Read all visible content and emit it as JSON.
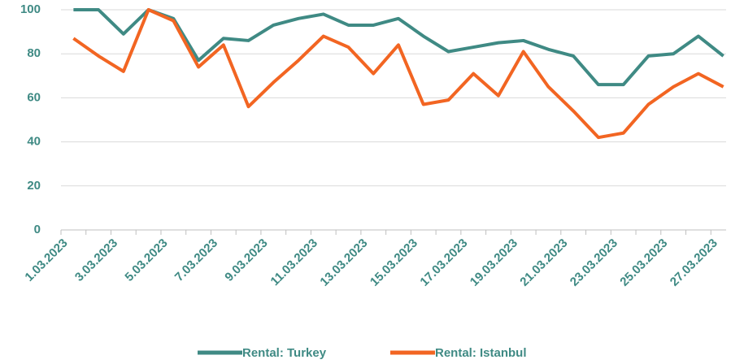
{
  "chart_data": {
    "type": "line",
    "categories": [
      "1.03.2023",
      null,
      "3.03.2023",
      null,
      "5.03.2023",
      null,
      "7.03.2023",
      null,
      "9.03.2023",
      null,
      "11.03.2023",
      null,
      "13.03.2023",
      null,
      "15.03.2023",
      null,
      "17.03.2023",
      null,
      "19.03.2023",
      null,
      "21.03.2023",
      null,
      "23.03.2023",
      null,
      "25.03.2023",
      null,
      "27.03.2023"
    ],
    "series": [
      {
        "name": "Rental: Turkey",
        "color": "#3f8a84",
        "values": [
          100,
          100,
          89,
          100,
          96,
          77,
          87,
          86,
          93,
          96,
          98,
          93,
          93,
          96,
          88,
          81,
          83,
          85,
          86,
          82,
          79,
          66,
          66,
          79,
          80,
          88,
          79
        ]
      },
      {
        "name": "Rental: Istanbul",
        "color": "#f26522",
        "values": [
          87,
          79,
          72,
          100,
          95,
          74,
          84,
          56,
          67,
          77,
          88,
          83,
          71,
          84,
          57,
          59,
          71,
          61,
          81,
          65,
          54,
          42,
          44,
          57,
          65,
          71,
          65
        ]
      }
    ],
    "ylim": [
      0,
      100
    ],
    "yticks": [
      0,
      20,
      40,
      60,
      80,
      100
    ],
    "grid": true,
    "legend": "bottom"
  }
}
